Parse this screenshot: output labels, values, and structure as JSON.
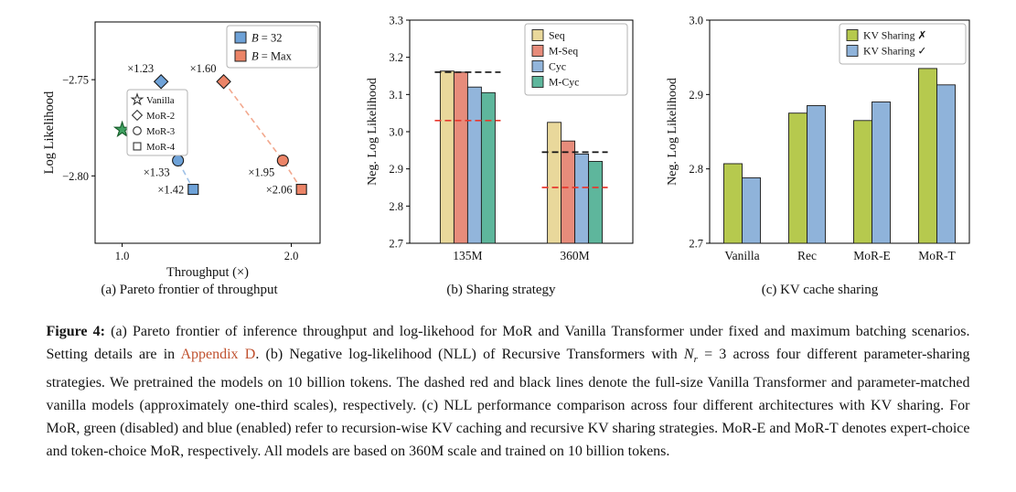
{
  "chart_data": [
    {
      "type": "scatter",
      "subcaption": "(a) Pareto frontier of throughput",
      "xlabel": "Throughput (×)",
      "ylabel": "Log Likelihood",
      "xlim": [
        0.84,
        2.17
      ],
      "ylim": [
        -2.835,
        -2.72
      ],
      "xticks": [
        1.0,
        2.0
      ],
      "yticks": [
        -2.75,
        -2.8
      ],
      "marker_legend": [
        {
          "label": "Vanilla",
          "marker": "star"
        },
        {
          "label": "MoR-2",
          "marker": "diamond"
        },
        {
          "label": "MoR-3",
          "marker": "circle"
        },
        {
          "label": "MoR-4",
          "marker": "square"
        }
      ],
      "batch_legend": [
        {
          "label_prefix": "B",
          "label_rest": " = 32",
          "color": "#6ea2d8"
        },
        {
          "label_prefix": "B",
          "label_rest": " = Max",
          "color": "#ec8467"
        }
      ],
      "series": [
        {
          "name": "Vanilla",
          "color": "#3fa060",
          "edge": "#145a28",
          "line": null,
          "points": [
            {
              "x": 1.0,
              "y": -2.776,
              "marker": "star"
            }
          ]
        },
        {
          "name": "B = 32",
          "color": "#6ea2d8",
          "edge": "#1a1a1a",
          "line": "#9fc1e7",
          "points": [
            {
              "x": 1.23,
              "y": -2.751,
              "marker": "diamond",
              "label": "×1.23",
              "label_dx": -8,
              "label_dy": -10
            },
            {
              "x": 1.33,
              "y": -2.792,
              "marker": "circle",
              "label": "×1.33",
              "label_dx": -9,
              "label_dy": 17
            },
            {
              "x": 1.42,
              "y": -2.807,
              "marker": "square",
              "label": "×1.42",
              "label_dx": -10,
              "label_dy": 4.5
            }
          ]
        },
        {
          "name": "B = Max",
          "color": "#ec8467",
          "edge": "#1a1a1a",
          "line": "#f2a88e",
          "points": [
            {
              "x": 1.6,
              "y": -2.751,
              "marker": "diamond",
              "label": "×1.60",
              "label_dx": -8,
              "label_dy": -10
            },
            {
              "x": 1.95,
              "y": -2.792,
              "marker": "circle",
              "label": "×1.95",
              "label_dx": -9,
              "label_dy": 17
            },
            {
              "x": 2.06,
              "y": -2.807,
              "marker": "square",
              "label": "×2.06",
              "label_dx": -10,
              "label_dy": 4.5
            }
          ]
        }
      ]
    },
    {
      "type": "bar",
      "subcaption": "(b) Sharing strategy",
      "ylabel": "Neg. Log Likelihood",
      "ylim": [
        2.7,
        3.3
      ],
      "yticks": [
        2.7,
        2.8,
        2.9,
        3.0,
        3.1,
        3.2,
        3.3
      ],
      "categories": [
        "135M",
        "360M"
      ],
      "series": [
        {
          "name": "Seq",
          "color": "#e9d89b",
          "values": [
            3.163,
            3.025
          ]
        },
        {
          "name": "M-Seq",
          "color": "#e78c7b",
          "values": [
            3.16,
            2.975
          ]
        },
        {
          "name": "Cyc",
          "color": "#92b5db",
          "values": [
            3.12,
            2.94
          ]
        },
        {
          "name": "M-Cyc",
          "color": "#5eb69c",
          "values": [
            3.105,
            2.92
          ]
        }
      ],
      "reference_lines": [
        {
          "name": "parameter-matched vanilla",
          "color": "#111111",
          "values": [
            3.16,
            2.945
          ]
        },
        {
          "name": "full-size vanilla",
          "color": "#e8392e",
          "values": [
            3.03,
            2.85
          ]
        }
      ],
      "legend_position": "upper right",
      "grid": false
    },
    {
      "type": "bar",
      "subcaption": "(c) KV cache sharing",
      "ylabel": "Neg. Log Likelihood",
      "ylim": [
        2.7,
        3.0
      ],
      "yticks": [
        2.7,
        2.8,
        2.9,
        3.0
      ],
      "categories": [
        "Vanilla",
        "Rec",
        "MoR-E",
        "MoR-T"
      ],
      "series": [
        {
          "name": "KV Sharing ✗",
          "color": "#b6c94e",
          "values": [
            2.807,
            2.875,
            2.865,
            2.935
          ]
        },
        {
          "name": "KV Sharing ✓",
          "color": "#8fb3da",
          "values": [
            2.788,
            2.885,
            2.89,
            2.913
          ]
        }
      ],
      "legend_position": "upper right",
      "grid": false
    }
  ],
  "caption": {
    "segments": [
      {
        "text": "Figure 4: "
      },
      {
        "text": "(a) Pareto frontier of inference throughput and log-likehood for MoR and Vanilla Transformer under fixed and maximum batching scenarios. Setting details are in "
      },
      {
        "text": "Appendix D"
      },
      {
        "text": ". (b) Negative log-likelihood (NLL) of Recursive Transformers with "
      },
      {
        "text": "N"
      },
      {
        "text": "r"
      },
      {
        "text": " = 3 across four different parameter-sharing strategies. We pretrained the models on 10 billion tokens. The dashed red and black lines denote the full-size Vanilla Transformer and parameter-matched vanilla models (approximately one-third scales), respectively. (c) NLL performance comparison across four different architectures with KV sharing. For MoR, green (disabled) and blue (enabled) refer to recursion-wise KV caching and recursive KV sharing strategies. MoR-E and MoR-T denotes expert-choice and token-choice MoR, respectively. All models are based on 360M scale and trained on 10 billion tokens."
      }
    ]
  }
}
